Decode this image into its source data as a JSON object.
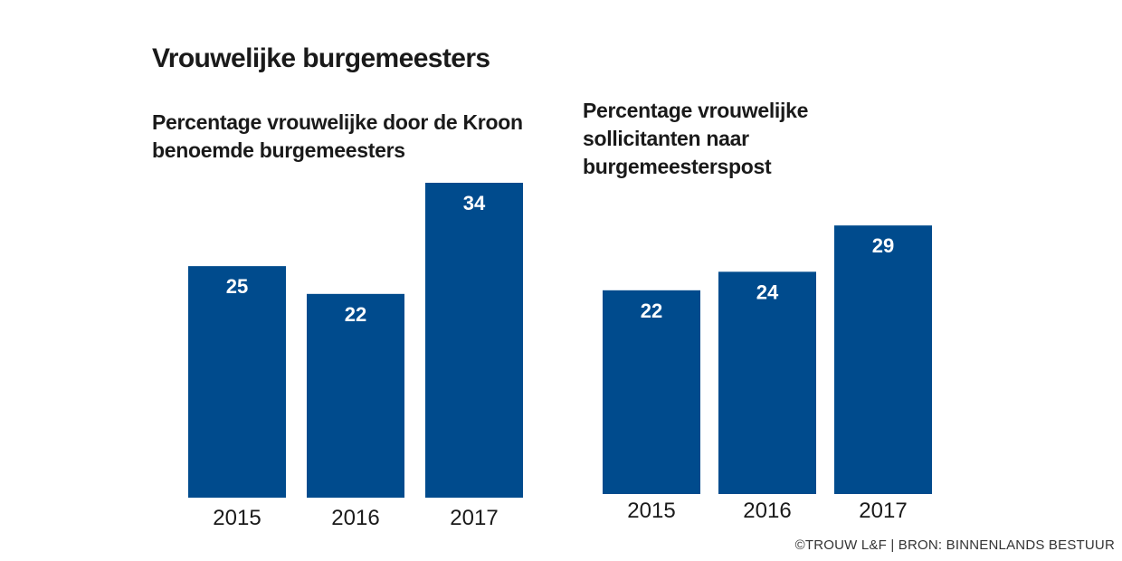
{
  "title": "Vrouwelijke burgemeesters",
  "credit": "©TROUW L&F | BRON: BINNENLANDS BESTUUR",
  "colors": {
    "bar": "#004b8d",
    "value_label": "#ffffff"
  },
  "chart_data": [
    {
      "type": "bar",
      "title": "Percentage vrouwelijke door de Kroon benoemde burgemeesters",
      "categories": [
        "2015",
        "2016",
        "2017"
      ],
      "values": [
        25,
        22,
        34
      ],
      "xlabel": "",
      "ylabel": "",
      "ylim": [
        0,
        34
      ],
      "grid": false
    },
    {
      "type": "bar",
      "title": "Percentage vrouwelijke sollicitanten naar burgemeesterspost",
      "categories": [
        "2015",
        "2016",
        "2017"
      ],
      "values": [
        22,
        24,
        29
      ],
      "xlabel": "",
      "ylabel": "",
      "ylim": [
        0,
        34
      ],
      "grid": false
    }
  ]
}
